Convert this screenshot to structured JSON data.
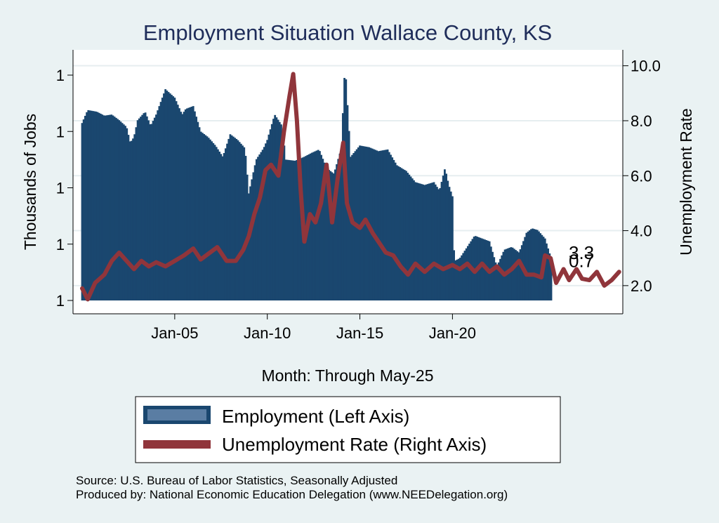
{
  "chart_data": {
    "type": "bar+line",
    "title": "Employment Situation Wallace  County, KS",
    "xlabel": "Month: Through May-25",
    "ylabel_left": "Thousands of Jobs",
    "ylabel_right": "Unemployment Rate",
    "x_ticks": [
      "Jan-05",
      "Jan-10",
      "Jan-15",
      "Jan-20"
    ],
    "y_left_ticks": [
      "1",
      "1",
      "1",
      "1",
      "1"
    ],
    "y_right_ticks": [
      "2.0",
      "4.0",
      "6.0",
      "8.0",
      "10.0"
    ],
    "y_right_range": [
      1.0,
      10.4
    ],
    "y_left_index_range": [
      0,
      4.45
    ],
    "x_range_years": [
      2000.0,
      2029.2
    ],
    "series": [
      {
        "name": "Employment (Left Axis)",
        "axis": "left",
        "color": "#1a476f",
        "keypoints": [
          [
            2000.0,
            3.15
          ],
          [
            2000.3,
            3.38
          ],
          [
            2000.8,
            3.35
          ],
          [
            2001.2,
            3.28
          ],
          [
            2001.6,
            3.3
          ],
          [
            2002.0,
            3.2
          ],
          [
            2002.4,
            3.08
          ],
          [
            2002.6,
            2.8
          ],
          [
            2002.8,
            2.9
          ],
          [
            2003.0,
            3.2
          ],
          [
            2003.4,
            3.35
          ],
          [
            2003.7,
            3.1
          ],
          [
            2004.0,
            3.3
          ],
          [
            2004.5,
            3.75
          ],
          [
            2005.0,
            3.6
          ],
          [
            2005.4,
            3.3
          ],
          [
            2005.6,
            3.4
          ],
          [
            2006.0,
            3.45
          ],
          [
            2006.4,
            3.0
          ],
          [
            2006.8,
            2.9
          ],
          [
            2007.2,
            2.75
          ],
          [
            2007.6,
            2.55
          ],
          [
            2008.0,
            2.95
          ],
          [
            2008.4,
            2.85
          ],
          [
            2008.8,
            2.7
          ],
          [
            2009.0,
            1.9
          ],
          [
            2009.4,
            2.5
          ],
          [
            2009.8,
            2.7
          ],
          [
            2010.0,
            2.85
          ],
          [
            2010.4,
            3.3
          ],
          [
            2010.8,
            3.1
          ],
          [
            2011.0,
            2.5
          ],
          [
            2011.5,
            2.48
          ],
          [
            2012.0,
            2.55
          ],
          [
            2012.4,
            2.62
          ],
          [
            2012.8,
            2.68
          ],
          [
            2013.2,
            2.35
          ],
          [
            2013.6,
            2.25
          ],
          [
            2014.0,
            2.7
          ],
          [
            2014.2,
            4.2
          ],
          [
            2014.5,
            2.55
          ],
          [
            2015.0,
            2.75
          ],
          [
            2015.5,
            2.72
          ],
          [
            2016.0,
            2.65
          ],
          [
            2016.5,
            2.68
          ],
          [
            2017.0,
            2.4
          ],
          [
            2017.5,
            2.3
          ],
          [
            2018.0,
            2.1
          ],
          [
            2018.5,
            2.05
          ],
          [
            2019.0,
            2.1
          ],
          [
            2019.3,
            1.95
          ],
          [
            2019.6,
            2.35
          ],
          [
            2019.8,
            2.05
          ],
          [
            2020.0,
            1.85
          ],
          [
            2020.1,
            0.7
          ],
          [
            2020.4,
            0.75
          ],
          [
            2020.8,
            0.95
          ],
          [
            2021.2,
            1.15
          ],
          [
            2021.6,
            1.1
          ],
          [
            2022.0,
            1.05
          ],
          [
            2022.4,
            0.6
          ],
          [
            2022.8,
            0.9
          ],
          [
            2023.2,
            0.95
          ],
          [
            2023.6,
            0.85
          ],
          [
            2024.0,
            1.2
          ],
          [
            2024.3,
            1.28
          ],
          [
            2024.6,
            1.25
          ],
          [
            2025.0,
            1.1
          ],
          [
            2025.33,
            0.75
          ]
        ]
      },
      {
        "name": "Unemployment Rate (Right Axis)",
        "axis": "right",
        "color": "#90353b",
        "keypoints": [
          [
            2000.0,
            1.9
          ],
          [
            2000.3,
            1.5
          ],
          [
            2000.7,
            2.1
          ],
          [
            2001.2,
            2.4
          ],
          [
            2001.6,
            2.9
          ],
          [
            2002.0,
            3.2
          ],
          [
            2002.4,
            2.9
          ],
          [
            2002.8,
            2.6
          ],
          [
            2003.2,
            2.9
          ],
          [
            2003.6,
            2.7
          ],
          [
            2004.0,
            2.85
          ],
          [
            2004.5,
            2.7
          ],
          [
            2005.0,
            2.9
          ],
          [
            2005.5,
            3.1
          ],
          [
            2006.0,
            3.35
          ],
          [
            2006.4,
            2.95
          ],
          [
            2006.8,
            3.15
          ],
          [
            2007.3,
            3.4
          ],
          [
            2007.8,
            2.9
          ],
          [
            2008.3,
            2.9
          ],
          [
            2008.7,
            3.3
          ],
          [
            2009.0,
            3.8
          ],
          [
            2009.3,
            4.6
          ],
          [
            2009.6,
            5.2
          ],
          [
            2009.9,
            6.2
          ],
          [
            2010.2,
            6.4
          ],
          [
            2010.6,
            6.0
          ],
          [
            2010.9,
            7.6
          ],
          [
            2011.2,
            8.9
          ],
          [
            2011.4,
            9.7
          ],
          [
            2011.6,
            8.0
          ],
          [
            2011.8,
            5.5
          ],
          [
            2012.0,
            3.6
          ],
          [
            2012.3,
            4.6
          ],
          [
            2012.6,
            4.3
          ],
          [
            2012.9,
            5.0
          ],
          [
            2013.2,
            6.4
          ],
          [
            2013.5,
            4.3
          ],
          [
            2013.8,
            5.9
          ],
          [
            2014.1,
            7.2
          ],
          [
            2014.3,
            5.0
          ],
          [
            2014.6,
            4.3
          ],
          [
            2015.0,
            4.1
          ],
          [
            2015.3,
            4.4
          ],
          [
            2015.7,
            3.9
          ],
          [
            2016.0,
            3.6
          ],
          [
            2016.4,
            3.2
          ],
          [
            2016.8,
            3.1
          ],
          [
            2017.2,
            2.7
          ],
          [
            2017.6,
            2.4
          ],
          [
            2018.0,
            2.8
          ],
          [
            2018.5,
            2.5
          ],
          [
            2019.0,
            2.8
          ],
          [
            2019.5,
            2.6
          ],
          [
            2020.0,
            2.75
          ],
          [
            2020.4,
            2.6
          ],
          [
            2020.8,
            2.8
          ],
          [
            2021.2,
            2.5
          ],
          [
            2021.6,
            2.8
          ],
          [
            2022.0,
            2.5
          ],
          [
            2022.4,
            2.7
          ],
          [
            2022.8,
            2.4
          ],
          [
            2023.2,
            2.6
          ],
          [
            2023.6,
            2.9
          ],
          [
            2024.0,
            2.4
          ],
          [
            2024.4,
            2.4
          ],
          [
            2024.8,
            2.3
          ],
          [
            2025.0,
            3.1
          ],
          [
            2025.3,
            3.0
          ],
          [
            2025.6,
            2.1
          ],
          [
            2026.0,
            2.6
          ],
          [
            2026.3,
            2.2
          ],
          [
            2026.7,
            2.6
          ],
          [
            2027.0,
            2.25
          ],
          [
            2027.4,
            2.2
          ],
          [
            2027.8,
            2.5
          ],
          [
            2028.2,
            2.0
          ],
          [
            2028.6,
            2.2
          ],
          [
            2029.0,
            2.5
          ]
        ]
      }
    ],
    "end_labels": [
      {
        "text": "3.3",
        "axis": "right",
        "at": 3.2
      },
      {
        "text": "0.7",
        "axis": "right",
        "at": 2.9
      }
    ],
    "legend": [
      {
        "label": "Employment (Left Axis)",
        "color": "#1a476f"
      },
      {
        "label": "Unemployment Rate (Right Axis)",
        "color": "#90353b"
      }
    ],
    "source_line": "Source: U.S. Bureau of Labor Statistics, Seasonally Adjusted",
    "produced_line": "Produced by: National Economic Education Delegation (www.NEEDelegation.org)"
  }
}
